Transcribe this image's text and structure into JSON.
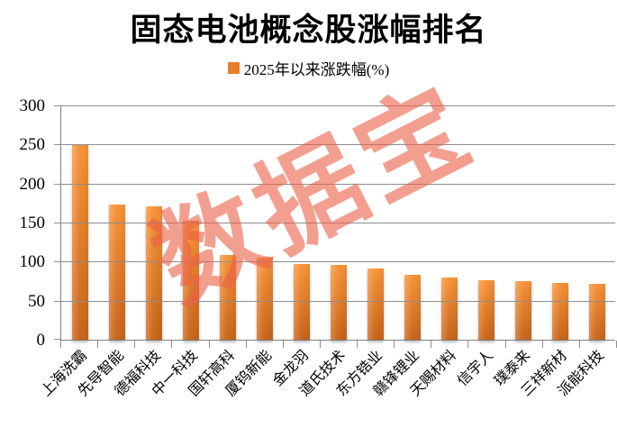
{
  "title": "固态电池概念股涨幅排名",
  "legend": {
    "label": "2025年以来涨跌幅(%)",
    "swatch_color": "#E87E2A"
  },
  "watermark": "数据宝",
  "colors": {
    "bar_top": "#F9953A",
    "bar_bottom": "#C9661B",
    "legend_swatch": "#E87E2A",
    "gridline": "#8E8E8E",
    "axis": "#808080",
    "watermark": "rgba(235,95,70,0.60)"
  },
  "chart_data": {
    "type": "bar",
    "title": "固态电池概念股涨幅排名",
    "categories": [
      "上海洗霸",
      "先导智能",
      "德福科技",
      "中一科技",
      "国轩高科",
      "厦钨新能",
      "金龙羽",
      "道氏技术",
      "东方锆业",
      "赣锋锂业",
      "天赐材料",
      "信宇人",
      "璞泰来",
      "三祥新材",
      "派能科技"
    ],
    "series": [
      {
        "name": "2025年以来涨跌幅(%)",
        "values": [
          250,
          174,
          172,
          153,
          109,
          106,
          97,
          96,
          92,
          83,
          80,
          77,
          75,
          73,
          72
        ]
      }
    ],
    "xlabel": "",
    "ylabel": "",
    "ylim": [
      0,
      300
    ],
    "yticks": [
      0,
      50,
      100,
      150,
      200,
      250,
      300
    ],
    "grid": "horizontal",
    "legend_position": "top",
    "bar_orientation": "vertical",
    "category_label_rotation_deg": -45
  }
}
